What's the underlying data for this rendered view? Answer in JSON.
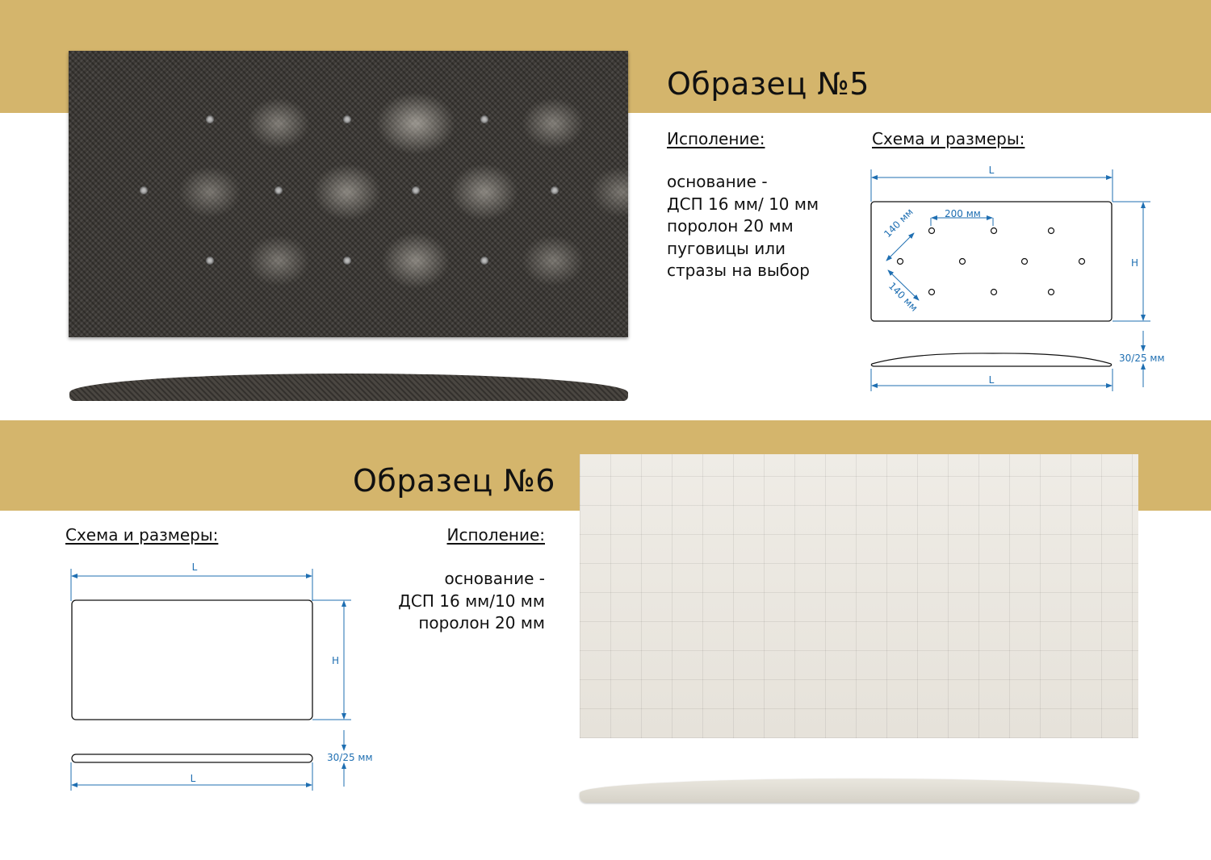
{
  "colors": {
    "band": "#d4b56c",
    "dimension": "#1f6fb2"
  },
  "sample5": {
    "title": "Образец №5",
    "spec_heading": "Исполение:",
    "spec_lines": [
      "основание -",
      "ДСП 16 мм/ 10 мм",
      "поролон 20 мм",
      "пуговицы или",
      "стразы на выбор"
    ],
    "scheme_heading": "Схема и размеры:",
    "dims": {
      "length": "L",
      "height": "H",
      "button_spacing": "200 мм",
      "diag_top": "140 мм",
      "diag_bottom": "140 мм",
      "thickness": "30/25 мм",
      "length_side": "L"
    }
  },
  "sample6": {
    "title": "Образец №6",
    "scheme_heading": "Схема и размеры:",
    "spec_heading": "Исполение:",
    "spec_lines": [
      "основание -",
      "ДСП 16 мм/10 мм",
      "поролон 20 мм"
    ],
    "dims": {
      "length": "L",
      "height": "H",
      "thickness": "30/25 мм",
      "length_side": "L"
    }
  }
}
